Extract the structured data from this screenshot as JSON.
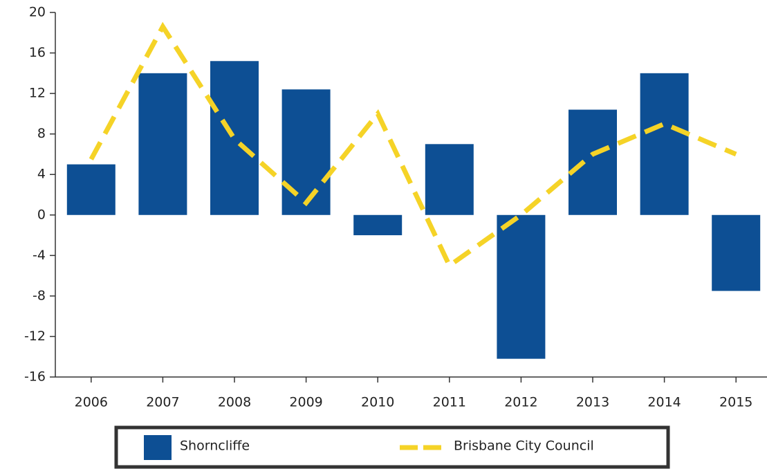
{
  "chart_data": {
    "type": "bar",
    "categories": [
      "2006",
      "2007",
      "2008",
      "2009",
      "2010",
      "2011",
      "2012",
      "2013",
      "2014",
      "2015"
    ],
    "series": [
      {
        "name": "Shorncliffe",
        "type": "bar",
        "color": "#0d4f94",
        "values": [
          5,
          14,
          15.2,
          12.4,
          -2,
          7,
          -14.2,
          10.4,
          14,
          -7.5
        ]
      },
      {
        "name": "Brisbane City Council",
        "type": "line",
        "color": "#f5d327",
        "values": [
          5.5,
          18.6,
          7.5,
          1.2,
          10,
          -5,
          0,
          6,
          9,
          6
        ]
      }
    ],
    "ylim": [
      -16,
      20
    ],
    "yticks": [
      -16,
      -12,
      -8,
      -4,
      0,
      4,
      8,
      12,
      16,
      20
    ],
    "grid": false,
    "legend": "bottom"
  }
}
